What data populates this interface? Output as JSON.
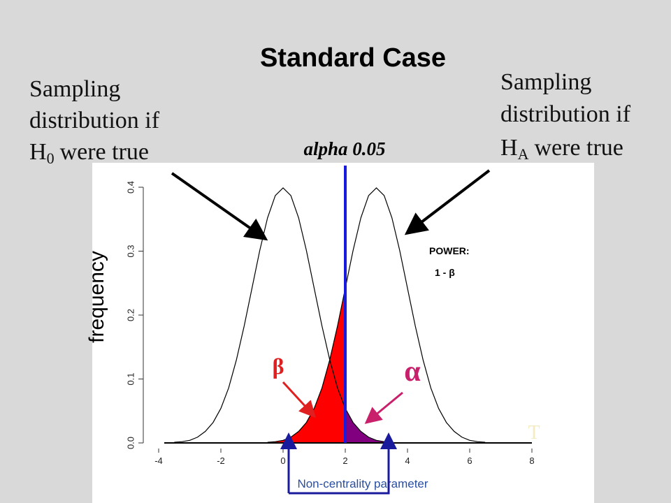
{
  "chart_data": {
    "type": "line",
    "title": "Standard Case",
    "y_label": "frequency",
    "left_note": {
      "line1": "Sampling",
      "line2": "distribution if",
      "h": "H",
      "sub": "0",
      "rest": "were true"
    },
    "right_note": {
      "line1": "Sampling",
      "line2": "distribution if",
      "h": "H",
      "sub": "A",
      "rest": "were true"
    },
    "alpha_label": "alpha 0.05",
    "power_label": "POWER:",
    "power_formula": "1 - β",
    "beta_symbol": "β",
    "alpha_symbol": "α",
    "ncp_label": "Non-centrality parameter",
    "corner_mark": "T",
    "xlim": [
      -4,
      8
    ],
    "xticks": [
      -4,
      -2,
      0,
      2,
      4,
      6,
      8
    ],
    "ylim": [
      0,
      0.4
    ],
    "yticks": [
      {
        "value": 0,
        "label": "0.0"
      },
      0.1,
      0.2,
      0.3,
      0.4
    ],
    "critical_line": {
      "value": 2,
      "color": "#1a1adc"
    },
    "beta_color": "#ff0000",
    "alpha_color": "#800080",
    "series": [
      {
        "color": "#000000",
        "x": [
          -3.5,
          -3.25,
          -3,
          -2.75,
          -2.5,
          -2.25,
          -2,
          -1.75,
          -1.5,
          -1.25,
          -1,
          -0.75,
          -0.5,
          -0.25,
          0,
          0.25,
          0.5,
          0.75,
          1,
          1.25,
          1.5,
          1.75,
          2,
          2.25,
          2.5,
          2.75,
          3,
          3.25,
          3.5
        ],
        "values": [
          0.001,
          0.002,
          0.004,
          0.009,
          0.018,
          0.032,
          0.054,
          0.086,
          0.13,
          0.183,
          0.242,
          0.301,
          0.352,
          0.387,
          0.399,
          0.387,
          0.352,
          0.301,
          0.242,
          0.183,
          0.13,
          0.086,
          0.054,
          0.032,
          0.018,
          0.009,
          0.004,
          0.002,
          0.001
        ]
      },
      {
        "color": "#000000",
        "x": [
          -0.5,
          -0.25,
          0,
          0.25,
          0.5,
          0.75,
          1,
          1.25,
          1.5,
          1.75,
          2,
          2.25,
          2.5,
          2.75,
          3,
          3.25,
          3.5,
          3.75,
          4,
          4.25,
          4.5,
          4.75,
          5,
          5.25,
          5.5,
          5.75,
          6,
          6.25,
          6.5
        ],
        "values": [
          0.001,
          0.002,
          0.004,
          0.009,
          0.018,
          0.032,
          0.054,
          0.086,
          0.13,
          0.183,
          0.242,
          0.301,
          0.352,
          0.387,
          0.399,
          0.387,
          0.352,
          0.301,
          0.242,
          0.183,
          0.13,
          0.086,
          0.054,
          0.032,
          0.018,
          0.009,
          0.004,
          0.002,
          0.001
        ]
      }
    ]
  }
}
